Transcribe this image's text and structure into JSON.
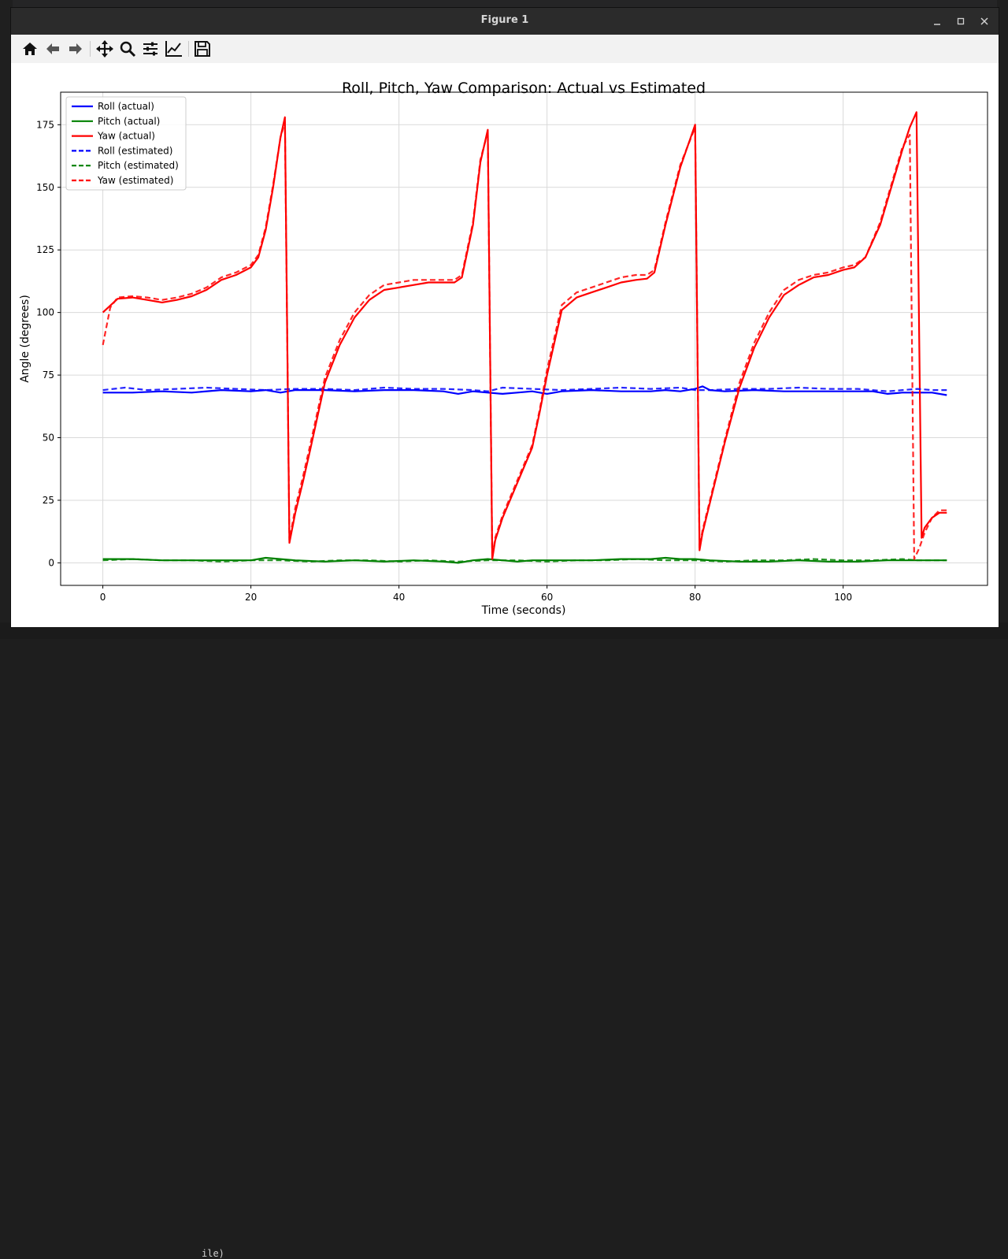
{
  "window": {
    "title": "Figure 1"
  },
  "toolbar": {
    "icons": [
      "home-icon",
      "back-arrow-icon",
      "forward-arrow-icon",
      "pan-icon",
      "zoom-icon",
      "subplots-config-icon",
      "axes-edit-icon",
      "save-icon"
    ]
  },
  "background": {
    "bottom_text": "ile)"
  },
  "colors": {
    "roll": "#0000ff",
    "pitch": "#008000",
    "yaw": "#ff0000"
  },
  "chart_data": {
    "type": "line",
    "title": "Roll, Pitch, Yaw Comparison: Actual vs Estimated",
    "xlabel": "Time (seconds)",
    "ylabel": "Angle (degrees)",
    "xlim": [
      -5.7,
      119.5
    ],
    "ylim": [
      -9,
      188
    ],
    "xticks": [
      0,
      20,
      40,
      60,
      80,
      100
    ],
    "yticks": [
      0,
      25,
      50,
      75,
      100,
      125,
      150,
      175
    ],
    "grid": true,
    "legend_position": "top-left",
    "series": [
      {
        "name": "Roll (actual)",
        "color": "#0000ff",
        "style": "solid",
        "x": [
          0,
          4,
          8,
          12,
          16,
          20,
          22,
          24,
          26,
          30,
          34,
          38,
          42,
          46,
          48,
          50,
          52,
          54,
          56,
          58,
          60,
          62,
          66,
          70,
          74,
          76,
          78,
          80,
          81,
          82,
          84,
          88,
          92,
          96,
          100,
          104,
          106,
          108,
          110,
          112,
          114
        ],
        "y": [
          68,
          68,
          68.5,
          68,
          69,
          68.5,
          69,
          68,
          69,
          69,
          68.5,
          69,
          69,
          68.5,
          67.5,
          68.5,
          68,
          67.5,
          68,
          68.5,
          67.5,
          68.5,
          69,
          68.5,
          68.5,
          69,
          68.5,
          69.5,
          70.5,
          69,
          68.5,
          69,
          68.5,
          68.5,
          68.5,
          68.5,
          67.5,
          68,
          68,
          68,
          67
        ]
      },
      {
        "name": "Pitch (actual)",
        "color": "#008000",
        "style": "solid",
        "x": [
          0,
          4,
          8,
          12,
          16,
          20,
          22,
          24,
          26,
          30,
          34,
          38,
          42,
          46,
          48,
          50,
          52,
          54,
          56,
          58,
          62,
          66,
          70,
          74,
          76,
          78,
          80,
          82,
          86,
          90,
          94,
          98,
          102,
          106,
          110,
          112,
          114
        ],
        "y": [
          1.5,
          1.5,
          1,
          1,
          1,
          1,
          2,
          1.5,
          1,
          0.5,
          1,
          0.5,
          1,
          0.5,
          0,
          1,
          1.5,
          1,
          0.5,
          1,
          1,
          1,
          1.5,
          1.5,
          2,
          1.5,
          1.5,
          1,
          0.5,
          0.5,
          1,
          0.5,
          0.5,
          1,
          1,
          1,
          1
        ]
      },
      {
        "name": "Yaw (actual)",
        "color": "#ff0000",
        "style": "solid",
        "x": [
          0,
          2,
          4,
          6,
          8,
          10,
          12,
          14,
          16,
          18,
          20,
          21,
          22,
          23,
          24,
          24.6,
          25.2,
          26,
          27,
          28,
          30,
          32,
          34,
          36,
          38,
          40,
          42,
          44,
          46,
          47.5,
          48.5,
          50,
          51,
          52,
          52.6,
          53,
          54,
          56,
          58,
          59,
          60,
          61,
          62,
          64,
          66,
          68,
          70,
          72,
          73.5,
          74.5,
          76,
          78,
          80,
          80.6,
          81,
          82,
          84,
          86,
          88,
          90,
          92,
          94,
          96,
          98,
          100,
          101.5,
          103,
          105,
          107,
          108,
          109,
          109.9,
          110.6,
          111,
          112,
          113,
          114
        ],
        "y": [
          100,
          105.5,
          106,
          105,
          104,
          105,
          106.5,
          109,
          113,
          115,
          118,
          122,
          133,
          150,
          170,
          178,
          8,
          20,
          32,
          45,
          72,
          87,
          98,
          105,
          109,
          110,
          111,
          112,
          112,
          112,
          114,
          135,
          160,
          173,
          1.5,
          9,
          18,
          32,
          46,
          60,
          75,
          88,
          101,
          106,
          108,
          110,
          112,
          113,
          113.5,
          116,
          135,
          158,
          175,
          5,
          12,
          24,
          48,
          70,
          86,
          98,
          107,
          111,
          114,
          115,
          117,
          118,
          122,
          135,
          155,
          165,
          174,
          180,
          10,
          14,
          18,
          20,
          20
        ]
      },
      {
        "name": "Roll (estimated)",
        "color": "#0000ff",
        "style": "dashed",
        "x": [
          0,
          3,
          6,
          10,
          14,
          18,
          22,
          26,
          30,
          34,
          38,
          42,
          46,
          50,
          52,
          54,
          58,
          62,
          66,
          70,
          74,
          78,
          80,
          82,
          86,
          90,
          94,
          98,
          102,
          106,
          110,
          112,
          114
        ],
        "y": [
          69,
          70,
          69,
          69.5,
          70,
          69.5,
          69,
          69.5,
          69.5,
          69,
          70,
          69.5,
          69.5,
          69,
          68.5,
          70,
          69.5,
          69,
          69.5,
          70,
          69.5,
          70,
          69,
          69,
          69.5,
          69.5,
          70,
          69.5,
          69.5,
          68.5,
          69.5,
          69,
          69
        ]
      },
      {
        "name": "Pitch (estimated)",
        "color": "#008000",
        "style": "dashed",
        "x": [
          0,
          4,
          8,
          12,
          16,
          20,
          24,
          28,
          32,
          36,
          40,
          44,
          48,
          52,
          56,
          60,
          64,
          68,
          72,
          76,
          80,
          84,
          88,
          92,
          96,
          100,
          104,
          108,
          110,
          112,
          114
        ],
        "y": [
          1,
          1.5,
          1,
          1,
          0.5,
          1,
          1,
          0.5,
          1,
          1,
          0.5,
          1,
          0.5,
          1,
          1,
          0.5,
          1,
          1,
          1.5,
          1,
          1,
          0.5,
          1,
          1,
          1.5,
          1,
          1,
          1.5,
          1,
          1,
          1
        ]
      },
      {
        "name": "Yaw (estimated)",
        "color": "#ff0000",
        "style": "dashed",
        "x": [
          0,
          1,
          2,
          4,
          6,
          8,
          10,
          12,
          14,
          16,
          18,
          20,
          21,
          22,
          23,
          24,
          24.6,
          25.2,
          26,
          27,
          28,
          30,
          32,
          34,
          36,
          38,
          40,
          42,
          44,
          46,
          47.5,
          48.5,
          50,
          51,
          52,
          52.6,
          53,
          54,
          56,
          58,
          59,
          60,
          61,
          62,
          64,
          66,
          68,
          70,
          72,
          73.5,
          74.5,
          76,
          78,
          80,
          80.6,
          81,
          82,
          84,
          86,
          88,
          90,
          92,
          94,
          96,
          98,
          100,
          101.5,
          103,
          105,
          107,
          108,
          109,
          109.6,
          110.3,
          111,
          112,
          113,
          114
        ],
        "y": [
          87,
          102,
          106,
          106.5,
          106,
          105,
          106,
          107.5,
          110,
          114,
          116,
          119,
          123,
          134,
          151,
          170,
          176,
          9,
          22,
          34,
          47,
          74,
          89,
          100,
          107,
          111,
          112,
          113,
          113,
          113,
          113,
          115,
          136,
          161,
          172,
          2,
          10,
          19,
          33,
          47,
          61,
          77,
          90,
          103,
          108,
          110,
          112,
          114,
          115,
          115,
          117,
          136,
          159,
          174,
          6,
          13,
          25,
          49,
          72,
          88,
          100,
          109,
          113,
          115,
          116,
          118,
          119,
          122,
          136,
          156,
          166,
          171,
          1.5,
          6,
          12,
          18,
          21,
          21
        ]
      }
    ]
  }
}
